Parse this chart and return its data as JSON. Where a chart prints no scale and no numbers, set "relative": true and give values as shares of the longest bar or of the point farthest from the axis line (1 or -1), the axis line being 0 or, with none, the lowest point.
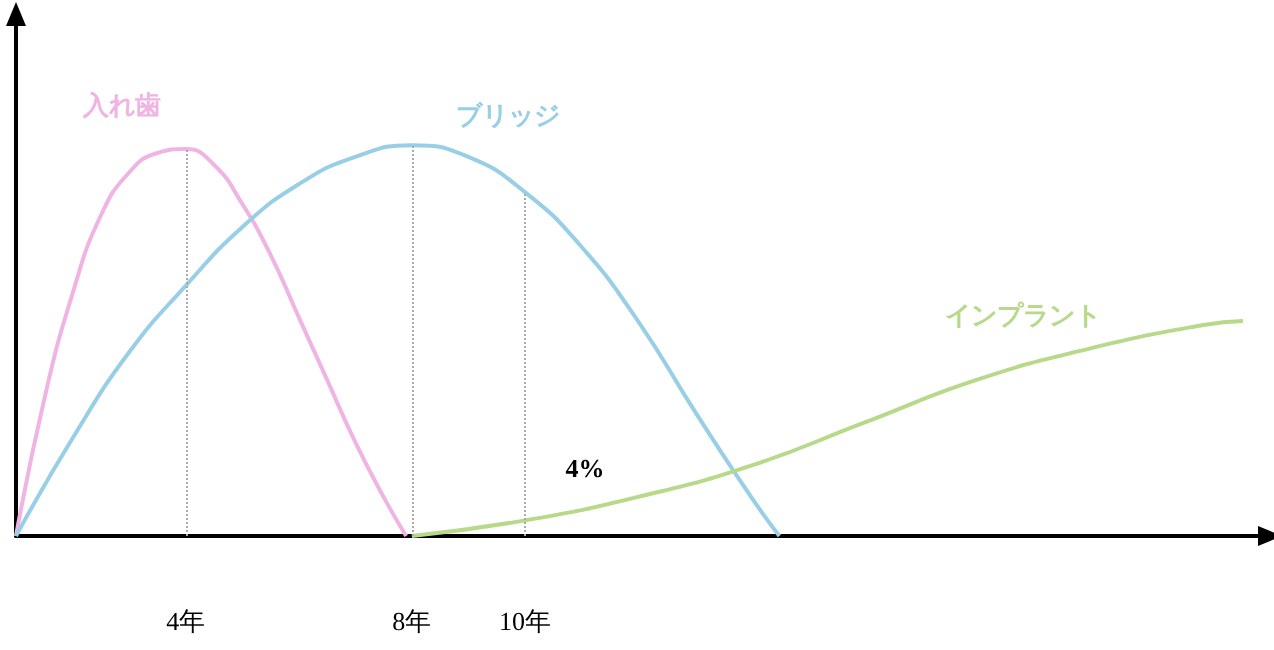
{
  "chart_data": {
    "type": "line",
    "relative": true,
    "xlim": [
      1,
      23
    ],
    "xticks": [
      {
        "value": 4,
        "label": "4年"
      },
      {
        "value": 8,
        "label": "8年"
      },
      {
        "value": 10,
        "label": "10年"
      }
    ],
    "legend": false,
    "grid": false,
    "marker": "none",
    "series": [
      {
        "name": "入れ歯",
        "color": "#f0b4e4",
        "x": [
          1,
          1.5,
          2,
          2.5,
          3,
          3.5,
          4,
          4.5,
          5,
          5.5,
          6,
          6.5,
          7,
          7.5,
          7.9
        ],
        "values": [
          0,
          0.35,
          0.62,
          0.82,
          0.93,
          0.98,
          0.99,
          0.95,
          0.85,
          0.72,
          0.56,
          0.4,
          0.24,
          0.1,
          0
        ]
      },
      {
        "name": "ブリッジ",
        "color": "#98cfe6",
        "x": [
          1,
          2,
          3,
          4,
          5,
          6,
          7,
          8,
          9,
          10,
          11,
          12,
          13,
          14,
          14.5
        ],
        "values": [
          0,
          0.25,
          0.47,
          0.64,
          0.79,
          0.9,
          0.97,
          1,
          0.97,
          0.88,
          0.74,
          0.55,
          0.32,
          0.1,
          0
        ]
      },
      {
        "name": "インプラント",
        "color": "#b8d98a",
        "x": [
          8,
          10,
          12,
          14,
          16,
          18,
          20,
          22,
          22.7
        ],
        "values": [
          0,
          0.04,
          0.1,
          0.18,
          0.29,
          0.4,
          0.48,
          0.54,
          0.55
        ]
      }
    ],
    "ref_lines": [
      {
        "axis": "x",
        "value": 4,
        "color": "#aaaaaa",
        "line_style": "dotted"
      },
      {
        "axis": "x",
        "value": 8,
        "color": "#aaaaaa",
        "line_style": "dotted"
      },
      {
        "axis": "x",
        "value": 10,
        "color": "#aaaaaa",
        "line_style": "dotted"
      }
    ],
    "annotations": [
      {
        "text": "4%",
        "x": 10,
        "y": 0.04
      }
    ]
  }
}
